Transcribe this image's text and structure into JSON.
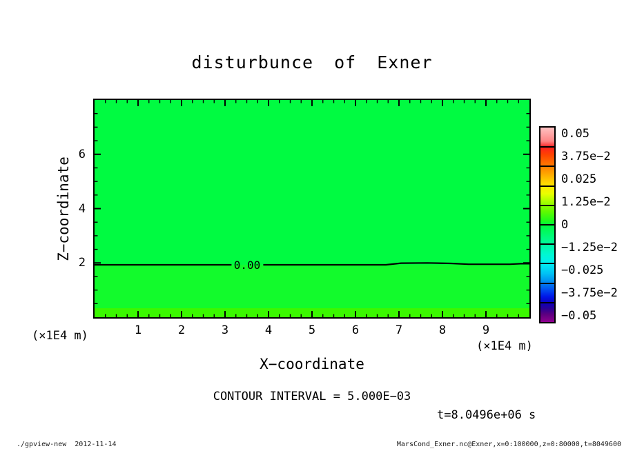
{
  "title": "disturbunce of Exner",
  "plot": {
    "x_axis": {
      "label": "X−coordinate",
      "unit_left": "(×1E4 m)",
      "unit_right": "(×1E4 m)",
      "tick_labels": [
        "1",
        "2",
        "3",
        "4",
        "5",
        "6",
        "7",
        "8",
        "9"
      ],
      "tick_values": [
        1,
        2,
        3,
        4,
        5,
        6,
        7,
        8,
        9
      ]
    },
    "y_axis": {
      "label": "Z−coordinate",
      "tick_labels": [
        "2",
        "4",
        "6"
      ],
      "tick_values": [
        2,
        4,
        6
      ]
    },
    "contour_label": "0.00"
  },
  "annotations": {
    "contour_interval": "CONTOUR INTERVAL = 5.000E−03",
    "time": "t=8.0496e+06 s"
  },
  "colorbar": {
    "labels": [
      "0.05",
      "3.75e−2",
      "0.025",
      "1.25e−2",
      "0",
      "−1.25e−2",
      "−0.025",
      "−3.75e−2",
      "−0.05"
    ],
    "cells": 10,
    "gradient_stops": [
      {
        "c": "#ffc2c2",
        "p": 0
      },
      {
        "c": "#ff8585",
        "p": 7
      },
      {
        "c": "#ff1f1f",
        "p": 10
      },
      {
        "c": "#ff4400",
        "p": 14
      },
      {
        "c": "#ff7f00",
        "p": 20
      },
      {
        "c": "#ffb300",
        "p": 25
      },
      {
        "c": "#ffe800",
        "p": 30
      },
      {
        "c": "#eaff00",
        "p": 34
      },
      {
        "c": "#a8ff00",
        "p": 38
      },
      {
        "c": "#62fa00",
        "p": 43
      },
      {
        "c": "#1cfa1c",
        "p": 48
      },
      {
        "c": "#00fa3e",
        "p": 50
      },
      {
        "c": "#00fa6e",
        "p": 55
      },
      {
        "c": "#00f9a0",
        "p": 60
      },
      {
        "c": "#00f8d0",
        "p": 65
      },
      {
        "c": "#00eef4",
        "p": 70
      },
      {
        "c": "#00c2f4",
        "p": 75
      },
      {
        "c": "#0090f0",
        "p": 79
      },
      {
        "c": "#0054f0",
        "p": 83
      },
      {
        "c": "#0016e8",
        "p": 87
      },
      {
        "c": "#0b00c0",
        "p": 90
      },
      {
        "c": "#2a0096",
        "p": 93
      },
      {
        "c": "#5c0080",
        "p": 96
      },
      {
        "c": "#8f008f",
        "p": 100
      }
    ]
  },
  "colors": {
    "field_upper": "#00fb41",
    "field_lower": "#12fb2c",
    "field_bottom_band": "#3bf800",
    "line": "#000000"
  },
  "footer": {
    "left": "./gpview-new  2012-11-14",
    "right": "MarsCond_Exner.nc@Exner,x=0:100000,z=0:80000,t=8049600"
  },
  "chart_data": {
    "type": "heatmap",
    "title": "disturbunce of Exner",
    "xlabel": "X-coordinate (×1E4 m)",
    "ylabel": "Z-coordinate (×1E4 m)",
    "xlim": [
      0,
      10
    ],
    "ylim": [
      0,
      8
    ],
    "x_ticks": [
      1,
      2,
      3,
      4,
      5,
      6,
      7,
      8,
      9
    ],
    "y_ticks": [
      2,
      4,
      6
    ],
    "x_minor_tick_step": 0.25,
    "y_minor_tick_step": 0.5,
    "contour_interval": 0.005,
    "colorbar_levels": [
      0.05,
      0.0375,
      0.025,
      0.0125,
      0,
      -0.0125,
      -0.025,
      -0.0375,
      -0.05
    ],
    "field_summary": "Exner-function disturbance is ~0 (green) over the whole domain; a slightly different green below the 0.00 contour at z~2e4 m and a thin yellow-green (slightly positive) band below z~0.35e4 m near the surface",
    "zero_contour_segments_x_z": [
      [
        [
          0,
          1.93
        ],
        [
          3.15,
          1.93
        ]
      ],
      [
        [
          3.88,
          1.93
        ],
        [
          6.7,
          1.93
        ],
        [
          7.05,
          1.99
        ],
        [
          7.65,
          2.0
        ],
        [
          8.2,
          1.98
        ],
        [
          8.6,
          1.95
        ],
        [
          9.55,
          1.95
        ],
        [
          9.8,
          1.97
        ],
        [
          10,
          1.97
        ]
      ]
    ],
    "zero_contour_label": "0.00",
    "time": "t=8.0496e+06 s",
    "legend_position": "right colorbar",
    "grid": false
  }
}
